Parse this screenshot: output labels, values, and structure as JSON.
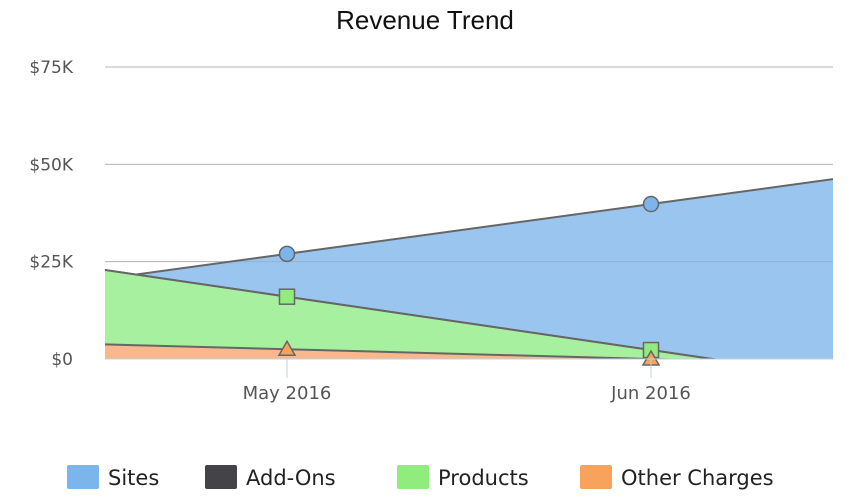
{
  "chart_data": {
    "type": "area",
    "title": "Revenue Trend",
    "x_categories": [
      "May 2016",
      "Jun 2016"
    ],
    "y_ticks": [
      "$0",
      "$25K",
      "$50K",
      "$75K"
    ],
    "ylim": [
      0,
      75000
    ],
    "grid": true,
    "stacked": true,
    "legend_position": "bottom",
    "series": [
      {
        "name": "Sites",
        "color": "#7cb5ec",
        "fill": "#9ac5ef",
        "marker": "circle",
        "values": [
          11000,
          37500
        ]
      },
      {
        "name": "Add-Ons",
        "color": "#434348",
        "fill": "#434348",
        "marker": "none",
        "values": [
          0,
          0
        ]
      },
      {
        "name": "Products",
        "color": "#90ed7d",
        "fill": "#a7f0a0",
        "marker": "square",
        "values": [
          13500,
          2300
        ]
      },
      {
        "name": "Other Charges",
        "color": "#f7a35c",
        "fill": "#f8b88b",
        "marker": "triangle",
        "values": [
          2500,
          0
        ]
      }
    ]
  }
}
